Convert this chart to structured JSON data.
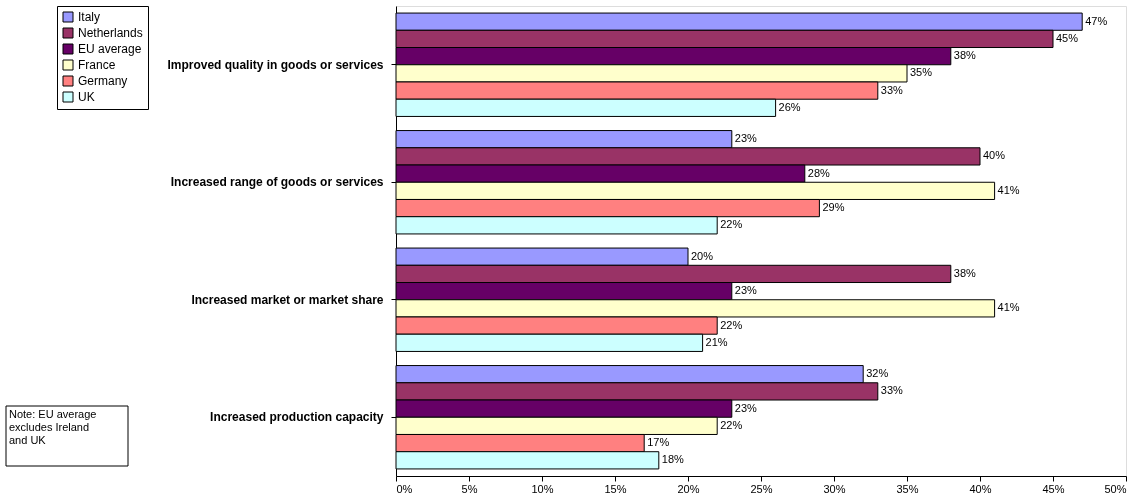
{
  "chart_data": {
    "type": "bar",
    "orientation": "horizontal",
    "categories": [
      "Improved quality in goods or services",
      "Increased range of goods or services",
      "Increased market or market share",
      "Increased production capacity"
    ],
    "series": [
      {
        "name": "Italy",
        "color": "#9999ff",
        "values": [
          47,
          23,
          20,
          32
        ],
        "value_labels": [
          "47%",
          "23%",
          "20%",
          "32%"
        ]
      },
      {
        "name": "Netherlands",
        "color": "#993366",
        "values": [
          45,
          40,
          38,
          33
        ],
        "value_labels": [
          "45%",
          "40%",
          "38%",
          "33%"
        ]
      },
      {
        "name": "EU average",
        "color": "#660066",
        "values": [
          38,
          28,
          23,
          23
        ],
        "value_labels": [
          "38%",
          "28%",
          "23%",
          "23%"
        ]
      },
      {
        "name": "France",
        "color": "#ffffcc",
        "values": [
          35,
          41,
          41,
          22
        ],
        "value_labels": [
          "35%",
          "41%",
          "41%",
          "22%"
        ]
      },
      {
        "name": "Germany",
        "color": "#ff8080",
        "values": [
          33,
          29,
          22,
          17
        ],
        "value_labels": [
          "33%",
          "29%",
          "22%",
          "17%"
        ]
      },
      {
        "name": "UK",
        "color": "#ccffff",
        "values": [
          26,
          22,
          21,
          18
        ],
        "value_labels": [
          "26%",
          "22%",
          "21%",
          "18%"
        ]
      }
    ],
    "xlim": [
      0,
      50
    ],
    "xticks": [
      {
        "value": 0,
        "label": "0%"
      },
      {
        "value": 5,
        "label": "5%"
      },
      {
        "value": 10,
        "label": "10%"
      },
      {
        "value": 15,
        "label": "15%"
      },
      {
        "value": 20,
        "label": "20%"
      },
      {
        "value": 25,
        "label": "25%"
      },
      {
        "value": 30,
        "label": "30%"
      },
      {
        "value": 35,
        "label": "35%"
      },
      {
        "value": 40,
        "label": "40%"
      },
      {
        "value": 45,
        "label": "45%"
      },
      {
        "value": 50,
        "label": "50%"
      }
    ],
    "grid": false,
    "legend": "left",
    "annotations": [
      "Note: EU average excludes Ireland and UK"
    ]
  }
}
